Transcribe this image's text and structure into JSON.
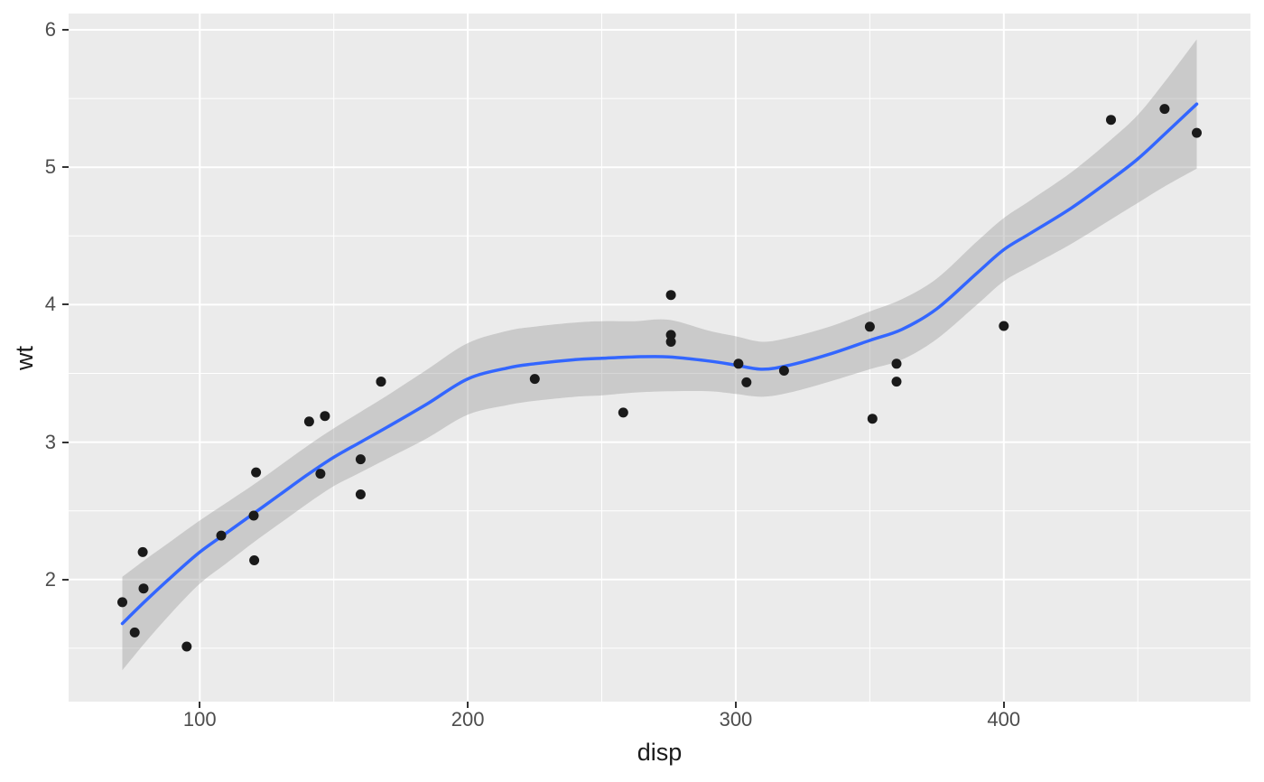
{
  "chart_data": {
    "type": "scatter",
    "title": "",
    "xlabel": "disp",
    "ylabel": "wt",
    "xlim": [
      51.05,
      492.05
    ],
    "ylim": [
      1.112,
      6.118
    ],
    "x_major_ticks": [
      100,
      200,
      300,
      400
    ],
    "x_minor_ticks": [
      150,
      250,
      350,
      450
    ],
    "y_major_ticks": [
      2,
      3,
      4,
      5,
      6
    ],
    "y_minor_ticks": [
      1.5,
      2.5,
      3.5,
      4.5,
      5.5
    ],
    "grid": "white major and minor gridlines on grey panel",
    "legend": "none",
    "points": [
      [
        160,
        2.62
      ],
      [
        160,
        2.875
      ],
      [
        108,
        2.32
      ],
      [
        258,
        3.215
      ],
      [
        360,
        3.44
      ],
      [
        225,
        3.46
      ],
      [
        360,
        3.57
      ],
      [
        146.7,
        3.19
      ],
      [
        140.8,
        3.15
      ],
      [
        167.6,
        3.44
      ],
      [
        167.6,
        3.44
      ],
      [
        275.8,
        4.07
      ],
      [
        275.8,
        3.73
      ],
      [
        275.8,
        3.78
      ],
      [
        472,
        5.25
      ],
      [
        460,
        5.424
      ],
      [
        440,
        5.345
      ],
      [
        78.7,
        2.2
      ],
      [
        75.7,
        1.615
      ],
      [
        71.1,
        1.835
      ],
      [
        120.1,
        2.465
      ],
      [
        318,
        3.52
      ],
      [
        304,
        3.435
      ],
      [
        350,
        3.84
      ],
      [
        400,
        3.845
      ],
      [
        79,
        1.935
      ],
      [
        120.3,
        2.14
      ],
      [
        95.1,
        1.513
      ],
      [
        351,
        3.17
      ],
      [
        145,
        2.77
      ],
      [
        301,
        3.57
      ],
      [
        121,
        2.78
      ]
    ],
    "smooth": {
      "description": "loess trend line with confidence ribbon",
      "x": [
        71.1,
        80,
        90,
        100,
        110,
        120,
        130,
        140,
        150,
        160,
        170,
        185,
        200,
        215,
        225,
        240,
        250,
        262,
        275,
        290,
        300,
        310,
        320,
        335,
        350,
        362,
        375,
        390,
        400,
        410,
        425,
        440,
        450,
        460,
        472
      ],
      "y": [
        1.68,
        1.85,
        2.03,
        2.2,
        2.34,
        2.48,
        2.62,
        2.76,
        2.89,
        3.0,
        3.11,
        3.28,
        3.46,
        3.54,
        3.57,
        3.6,
        3.61,
        3.62,
        3.62,
        3.59,
        3.56,
        3.53,
        3.56,
        3.64,
        3.74,
        3.82,
        3.97,
        4.23,
        4.4,
        4.52,
        4.7,
        4.91,
        5.06,
        5.24,
        5.46
      ],
      "lower": [
        1.34,
        1.55,
        1.77,
        1.97,
        2.12,
        2.27,
        2.41,
        2.55,
        2.68,
        2.78,
        2.88,
        3.03,
        3.2,
        3.27,
        3.3,
        3.33,
        3.34,
        3.36,
        3.37,
        3.37,
        3.35,
        3.33,
        3.36,
        3.44,
        3.53,
        3.6,
        3.75,
        4.0,
        4.17,
        4.28,
        4.44,
        4.62,
        4.74,
        4.86,
        4.99
      ],
      "upper": [
        2.02,
        2.15,
        2.29,
        2.43,
        2.56,
        2.69,
        2.83,
        2.97,
        3.1,
        3.22,
        3.34,
        3.53,
        3.72,
        3.81,
        3.84,
        3.87,
        3.88,
        3.88,
        3.89,
        3.81,
        3.77,
        3.73,
        3.76,
        3.84,
        3.95,
        4.04,
        4.19,
        4.46,
        4.63,
        4.76,
        4.96,
        5.2,
        5.38,
        5.62,
        5.93
      ]
    },
    "colors": {
      "panel_background": "#EBEBEB",
      "gridline": "#FFFFFF",
      "trend_line": "#3366FF",
      "ribbon_fill": "rgba(153,153,153,0.4)",
      "point": "#1a1a1a",
      "tick_label": "#4D4D4D",
      "axis_title": "#1a1a1a",
      "tick_mark": "#333333"
    }
  }
}
